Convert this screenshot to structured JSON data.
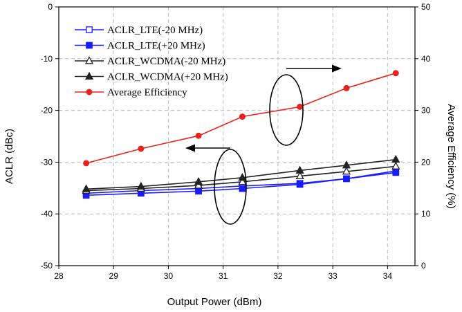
{
  "chart_data": {
    "type": "line",
    "title": "",
    "xlabel": "Output Power (dBm)",
    "ylabel": "ACLR (dBc)",
    "y2label": "Average Efficiency (%)",
    "xlim": [
      28,
      34.5
    ],
    "ylim": [
      -50,
      0
    ],
    "y2lim": [
      0,
      50
    ],
    "xticks": [
      "28",
      "29",
      "30",
      "31",
      "32",
      "33",
      "34"
    ],
    "yticks": [
      "0",
      "-10",
      "-20",
      "-30",
      "-40",
      "-50"
    ],
    "y2ticks": [
      "50",
      "40",
      "30",
      "20",
      "10",
      "0"
    ],
    "grid": "dashed",
    "legend_position": "top-left",
    "series": [
      {
        "name": "ACLR_LTE(-20 MHz)",
        "axis": "left",
        "color": "#1a1aff",
        "marker": "open-square",
        "x": [
          28.5,
          29.5,
          30.55,
          31.35,
          32.4,
          33.25,
          34.15
        ],
        "y": [
          -36.0,
          -35.5,
          -35.1,
          -34.6,
          -34.1,
          -33.2,
          -31.7
        ]
      },
      {
        "name": "ACLR_LTE(+20 MHz)",
        "axis": "left",
        "color": "#1a1aff",
        "marker": "filled-square",
        "x": [
          28.5,
          29.5,
          30.55,
          31.35,
          32.4,
          33.25,
          34.15
        ],
        "y": [
          -36.4,
          -36.0,
          -35.6,
          -35.1,
          -34.3,
          -33.2,
          -32.0
        ]
      },
      {
        "name": "ACLR_WCDMA(-20 MHz)",
        "axis": "left",
        "color": "#222222",
        "marker": "open-triangle",
        "x": [
          28.5,
          29.5,
          30.55,
          31.35,
          32.4,
          33.25,
          34.15
        ],
        "y": [
          -35.5,
          -35.1,
          -34.5,
          -33.8,
          -32.7,
          -31.8,
          -30.8
        ]
      },
      {
        "name": "ACLR_WCDMA(+20 MHz)",
        "axis": "left",
        "color": "#222222",
        "marker": "filled-triangle",
        "x": [
          28.5,
          29.5,
          30.55,
          31.35,
          32.4,
          33.25,
          34.15
        ],
        "y": [
          -35.2,
          -34.7,
          -33.8,
          -33.0,
          -31.6,
          -30.6,
          -29.5
        ]
      },
      {
        "name": "Average Efficiency",
        "axis": "right",
        "color": "#e8231c",
        "marker": "filled-circle",
        "x": [
          28.5,
          29.5,
          30.55,
          31.35,
          32.4,
          33.25,
          34.15
        ],
        "y": [
          19.8,
          22.6,
          25.1,
          28.8,
          30.7,
          34.3,
          37.2
        ]
      }
    ]
  }
}
